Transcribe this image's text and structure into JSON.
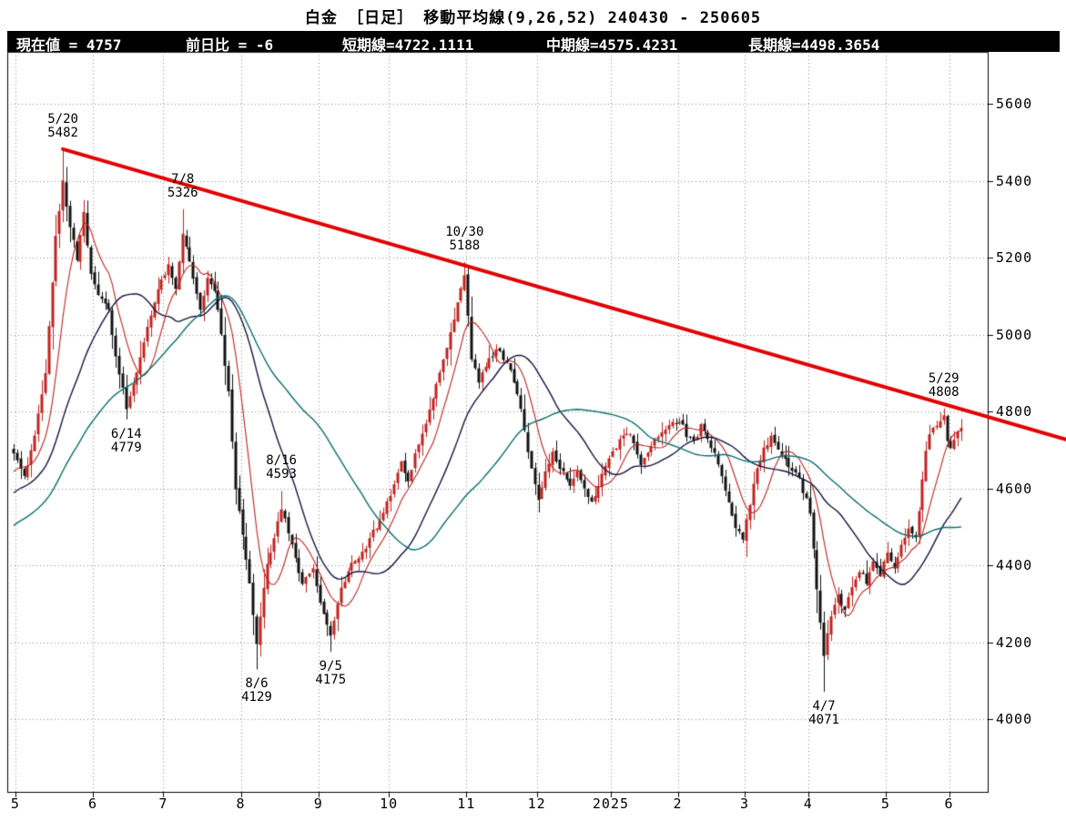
{
  "title": "白金 ［日足］  移動平均線(9,26,52)  240430 - 250605",
  "info_bar": {
    "segments": [
      "現在値 = 4757",
      "前日比 = -6",
      "短期線=4722.1111",
      "中期線=4575.4231",
      "長期線=4498.3654"
    ]
  },
  "chart_data": {
    "type": "candlestick",
    "instrument": "白金",
    "timeframe": "日足",
    "ma_label": "移動平均線(9,26,52)",
    "period_label": "240430 - 250605",
    "current_price": 4757,
    "change_vs_prev_day": -6,
    "y_axis": {
      "ticks": [
        5600,
        5400,
        5200,
        5000,
        4800,
        4600,
        4400,
        4200,
        4000
      ]
    },
    "x_axis": {
      "labels": [
        "5",
        "6",
        "7",
        "8",
        "9",
        "10",
        "11",
        "12",
        "2025",
        "2",
        "3",
        "4",
        "5",
        "6"
      ],
      "month_start_indices": [
        1,
        23,
        43,
        65,
        87,
        107,
        129,
        149,
        170,
        189,
        208,
        226,
        248,
        266
      ],
      "candle_count": 270
    },
    "moving_averages": [
      {
        "label": "短期線",
        "period": 9,
        "last_value": 4722.1111,
        "color": "#c2221e"
      },
      {
        "label": "中期線",
        "period": 26,
        "last_value": 4575.4231,
        "color": "#14143c"
      },
      {
        "label": "長期線",
        "period": 52,
        "last_value": 4498.3654,
        "color": "#0a6e6e"
      }
    ],
    "trendline": {
      "color": "#e00000",
      "width": 4,
      "from": {
        "index": 14,
        "price": 5482
      },
      "right_edge_price": 4727
    },
    "annotations": [
      {
        "date": "5/20",
        "price": 5482,
        "index": 14,
        "type": "high"
      },
      {
        "date": "7/8",
        "price": 5326,
        "index": 48,
        "type": "high"
      },
      {
        "date": "10/30",
        "price": 5188,
        "index": 128,
        "type": "high"
      },
      {
        "date": "5/29",
        "price": 4808,
        "index": 264,
        "type": "high"
      },
      {
        "date": "6/14",
        "price": 4779,
        "index": 32,
        "type": "low"
      },
      {
        "date": "8/16",
        "price": 4593,
        "index": 76,
        "type": "high"
      },
      {
        "date": "8/6",
        "price": 4129,
        "index": 69,
        "type": "low"
      },
      {
        "date": "9/5",
        "price": 4175,
        "index": 90,
        "type": "low"
      },
      {
        "date": "4/7",
        "price": 4071,
        "index": 230,
        "type": "low"
      }
    ],
    "close_anchors": [
      [
        0,
        4690
      ],
      [
        3,
        4630
      ],
      [
        6,
        4730
      ],
      [
        9,
        4900
      ],
      [
        12,
        5250
      ],
      [
        14,
        5400
      ],
      [
        16,
        5280
      ],
      [
        18,
        5200
      ],
      [
        20,
        5320
      ],
      [
        22,
        5150
      ],
      [
        24,
        5100
      ],
      [
        27,
        5060
      ],
      [
        29,
        4950
      ],
      [
        32,
        4810
      ],
      [
        35,
        4900
      ],
      [
        38,
        5020
      ],
      [
        41,
        5120
      ],
      [
        44,
        5180
      ],
      [
        46,
        5120
      ],
      [
        48,
        5270
      ],
      [
        51,
        5150
      ],
      [
        53,
        5060
      ],
      [
        55,
        5150
      ],
      [
        57,
        5120
      ],
      [
        59,
        5000
      ],
      [
        61,
        4850
      ],
      [
        63,
        4600
      ],
      [
        66,
        4420
      ],
      [
        69,
        4200
      ],
      [
        72,
        4400
      ],
      [
        76,
        4550
      ],
      [
        79,
        4450
      ],
      [
        82,
        4350
      ],
      [
        85,
        4400
      ],
      [
        87,
        4300
      ],
      [
        90,
        4210
      ],
      [
        93,
        4340
      ],
      [
        96,
        4400
      ],
      [
        100,
        4450
      ],
      [
        104,
        4520
      ],
      [
        107,
        4580
      ],
      [
        110,
        4670
      ],
      [
        112,
        4620
      ],
      [
        115,
        4720
      ],
      [
        118,
        4800
      ],
      [
        121,
        4900
      ],
      [
        124,
        5000
      ],
      [
        126,
        5080
      ],
      [
        128,
        5150
      ],
      [
        130,
        4940
      ],
      [
        132,
        4880
      ],
      [
        134,
        4920
      ],
      [
        137,
        4960
      ],
      [
        140,
        4930
      ],
      [
        143,
        4850
      ],
      [
        145,
        4750
      ],
      [
        147,
        4650
      ],
      [
        149,
        4570
      ],
      [
        151,
        4650
      ],
      [
        153,
        4690
      ],
      [
        156,
        4640
      ],
      [
        158,
        4600
      ],
      [
        160,
        4650
      ],
      [
        162,
        4600
      ],
      [
        164,
        4560
      ],
      [
        166,
        4610
      ],
      [
        168,
        4660
      ],
      [
        170,
        4700
      ],
      [
        172,
        4720
      ],
      [
        174,
        4750
      ],
      [
        176,
        4720
      ],
      [
        178,
        4660
      ],
      [
        180,
        4700
      ],
      [
        183,
        4730
      ],
      [
        186,
        4760
      ],
      [
        189,
        4780
      ],
      [
        191,
        4740
      ],
      [
        193,
        4720
      ],
      [
        195,
        4760
      ],
      [
        197,
        4730
      ],
      [
        199,
        4690
      ],
      [
        202,
        4600
      ],
      [
        205,
        4500
      ],
      [
        207,
        4470
      ],
      [
        209,
        4560
      ],
      [
        211,
        4650
      ],
      [
        213,
        4700
      ],
      [
        215,
        4730
      ],
      [
        217,
        4700
      ],
      [
        219,
        4670
      ],
      [
        221,
        4650
      ],
      [
        223,
        4620
      ],
      [
        225,
        4570
      ],
      [
        226,
        4540
      ],
      [
        227,
        4450
      ],
      [
        228,
        4330
      ],
      [
        229,
        4250
      ],
      [
        230,
        4160
      ],
      [
        231,
        4230
      ],
      [
        232,
        4260
      ],
      [
        234,
        4320
      ],
      [
        236,
        4280
      ],
      [
        238,
        4340
      ],
      [
        240,
        4390
      ],
      [
        242,
        4350
      ],
      [
        244,
        4410
      ],
      [
        246,
        4380
      ],
      [
        248,
        4430
      ],
      [
        250,
        4400
      ],
      [
        252,
        4450
      ],
      [
        254,
        4500
      ],
      [
        256,
        4470
      ],
      [
        257,
        4540
      ],
      [
        258,
        4620
      ],
      [
        259,
        4700
      ],
      [
        260,
        4740
      ],
      [
        262,
        4760
      ],
      [
        264,
        4790
      ],
      [
        265,
        4720
      ],
      [
        266,
        4700
      ],
      [
        267,
        4730
      ],
      [
        268,
        4750
      ],
      [
        269,
        4757
      ]
    ],
    "pre_history": {
      "start_price": 4280,
      "end_price": 4660,
      "days": 60
    },
    "colors": {
      "up": "#c2221e",
      "down": "#111111",
      "grid": "#8a8a8a",
      "axis": "#000000"
    }
  }
}
